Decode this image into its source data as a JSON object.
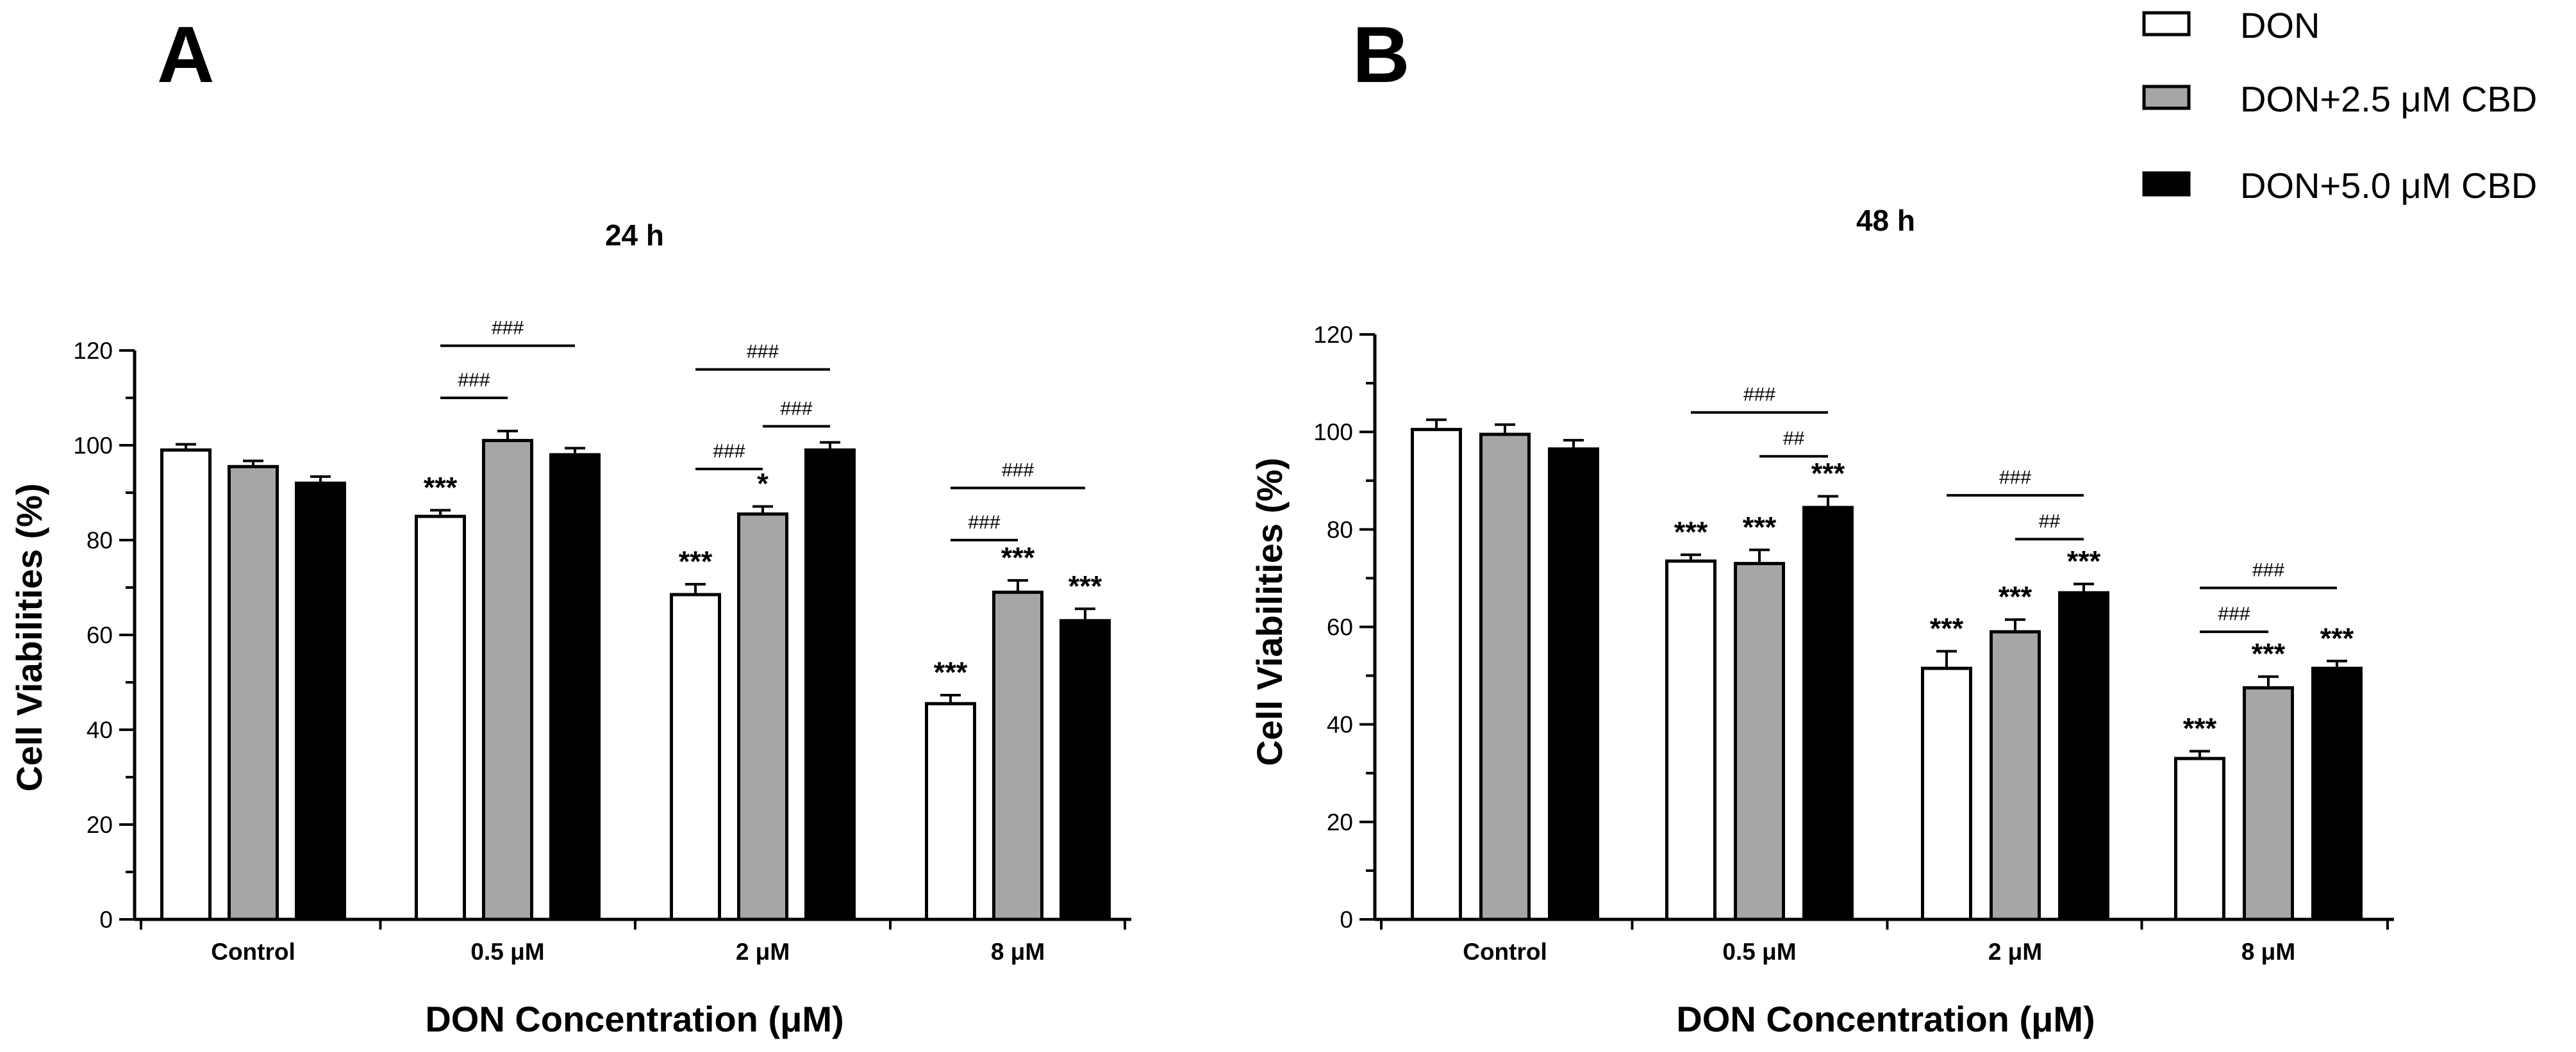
{
  "colors": {
    "DON": "#ffffff",
    "DON+2.5 μM CBD": "#a6a6a6",
    "DON+5.0 μM CBD": "#000000",
    "axis": "#000000"
  },
  "legend": {
    "position": "top-right",
    "entries": [
      {
        "label": "DON",
        "color": "#ffffff"
      },
      {
        "label": "DON+2.5 μM CBD",
        "color": "#a6a6a6"
      },
      {
        "label": "DON+5.0 μM CBD",
        "color": "#000000"
      }
    ]
  },
  "chart_data": [
    {
      "type": "bar",
      "panel": "A",
      "title": "24 h",
      "xlabel": "DON Concentration (μM)",
      "ylabel": "Cell Viabilities (%)",
      "ylim": [
        0,
        120
      ],
      "yticks": [
        "0",
        "20",
        "40",
        "60",
        "80",
        "100",
        "120"
      ],
      "categories": [
        "Control",
        "0.5 μM",
        "2 μM",
        "8 μM"
      ],
      "series": [
        {
          "name": "DON",
          "values": [
            99,
            85,
            68.5,
            45.5
          ],
          "errors": [
            1.2,
            1.3,
            2.2,
            1.8
          ]
        },
        {
          "name": "DON+2.5 μM CBD",
          "values": [
            95.5,
            101,
            85.5,
            69
          ],
          "errors": [
            1.2,
            2.0,
            1.6,
            2.5
          ]
        },
        {
          "name": "DON+5.0 μM CBD",
          "values": [
            92,
            98,
            99,
            63
          ],
          "errors": [
            1.4,
            1.4,
            1.6,
            2.5
          ]
        }
      ],
      "significance": [
        {
          "category": 1,
          "series": 0,
          "label": "***"
        },
        {
          "category": 2,
          "series": 0,
          "label": "***"
        },
        {
          "category": 2,
          "series": 1,
          "label": "*"
        },
        {
          "category": 3,
          "series": 0,
          "label": "***"
        },
        {
          "category": 3,
          "series": 1,
          "label": "***"
        },
        {
          "category": 3,
          "series": 2,
          "label": "***"
        }
      ],
      "comparisons": [
        {
          "category": 1,
          "from": 0,
          "to": 2,
          "label": "###",
          "y": 121
        },
        {
          "category": 1,
          "from": 0,
          "to": 1,
          "label": "###",
          "y": 110
        },
        {
          "category": 2,
          "from": 0,
          "to": 2,
          "label": "###",
          "y": 116
        },
        {
          "category": 2,
          "from": 1,
          "to": 2,
          "label": "###",
          "y": 104
        },
        {
          "category": 2,
          "from": 0,
          "to": 1,
          "label": "###",
          "y": 95
        },
        {
          "category": 3,
          "from": 0,
          "to": 2,
          "label": "###",
          "y": 91
        },
        {
          "category": 3,
          "from": 0,
          "to": 1,
          "label": "###",
          "y": 80
        }
      ]
    },
    {
      "type": "bar",
      "panel": "B",
      "title": "48 h",
      "xlabel": "DON Concentration (μM)",
      "ylabel": "Cell Viabilities (%)",
      "ylim": [
        0,
        120
      ],
      "yticks": [
        "0",
        "20",
        "40",
        "60",
        "80",
        "100",
        "120"
      ],
      "categories": [
        "Control",
        "0.5 μM",
        "2 μM",
        "8 μM"
      ],
      "series": [
        {
          "name": "DON",
          "values": [
            100.5,
            73.5,
            51.5,
            33
          ],
          "errors": [
            2.0,
            1.3,
            3.5,
            1.5
          ]
        },
        {
          "name": "DON+2.5 μM CBD",
          "values": [
            99.5,
            73,
            59,
            47.5
          ],
          "errors": [
            2.0,
            2.8,
            2.5,
            2.3
          ]
        },
        {
          "name": "DON+5.0 μM CBD",
          "values": [
            96.5,
            84.5,
            67,
            51.5
          ],
          "errors": [
            1.8,
            2.3,
            1.8,
            1.5
          ]
        }
      ],
      "significance": [
        {
          "category": 1,
          "series": 0,
          "label": "***"
        },
        {
          "category": 1,
          "series": 1,
          "label": "***"
        },
        {
          "category": 1,
          "series": 2,
          "label": "***"
        },
        {
          "category": 2,
          "series": 0,
          "label": "***"
        },
        {
          "category": 2,
          "series": 1,
          "label": "***"
        },
        {
          "category": 2,
          "series": 2,
          "label": "***"
        },
        {
          "category": 3,
          "series": 0,
          "label": "***"
        },
        {
          "category": 3,
          "series": 1,
          "label": "***"
        },
        {
          "category": 3,
          "series": 2,
          "label": "***"
        }
      ],
      "comparisons": [
        {
          "category": 1,
          "from": 0,
          "to": 2,
          "label": "###",
          "y": 104
        },
        {
          "category": 1,
          "from": 1,
          "to": 2,
          "label": "##",
          "y": 95
        },
        {
          "category": 2,
          "from": 0,
          "to": 2,
          "label": "###",
          "y": 87
        },
        {
          "category": 2,
          "from": 1,
          "to": 2,
          "label": "##",
          "y": 78
        },
        {
          "category": 3,
          "from": 0,
          "to": 2,
          "label": "###",
          "y": 68
        },
        {
          "category": 3,
          "from": 0,
          "to": 1,
          "label": "###",
          "y": 59
        }
      ]
    }
  ]
}
